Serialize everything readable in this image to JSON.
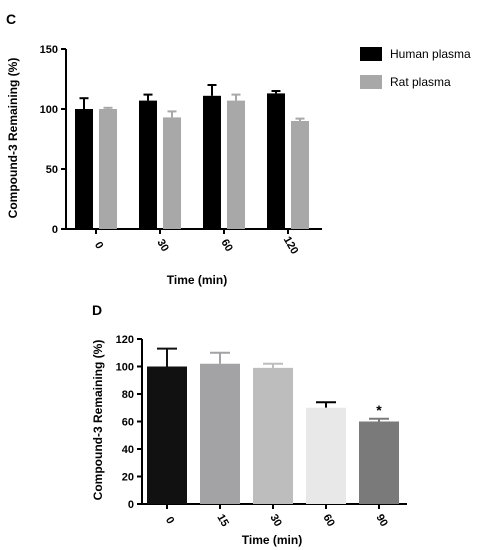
{
  "chart_data": [
    {
      "panel_label": "C",
      "type": "bar",
      "xlabel": "Time (min)",
      "ylabel": "Compound-3 Remaining (%)",
      "ylim": [
        0,
        150
      ],
      "yticks": [
        "0",
        "50",
        "100",
        "150"
      ],
      "categories": [
        "0",
        "30",
        "60",
        "120"
      ],
      "series": [
        {
          "name": "Human plasma",
          "color": "#000000",
          "values": [
            100,
            107,
            111,
            113
          ],
          "errors": [
            9,
            5,
            9,
            2
          ]
        },
        {
          "name": "Rat plasma",
          "color": "#a8a8a8",
          "values": [
            100,
            93,
            107,
            90
          ],
          "errors": [
            1,
            5,
            5,
            2
          ]
        }
      ],
      "legend_position": "top-right",
      "grid": false
    },
    {
      "panel_label": "D",
      "type": "bar",
      "xlabel": "Time (min)",
      "ylabel": "Compound-3 Remaining (%)",
      "ylim": [
        0,
        120
      ],
      "yticks": [
        "0",
        "20",
        "40",
        "60",
        "80",
        "100",
        "120"
      ],
      "categories": [
        "0",
        "15",
        "30",
        "60",
        "90"
      ],
      "values": [
        100,
        102,
        99,
        70,
        60
      ],
      "errors": [
        13,
        8,
        3,
        4,
        2
      ],
      "colors": [
        "#111111",
        "#a3a3a6",
        "#bdbdbd",
        "#e8e8e8",
        "#7a7a7a"
      ],
      "annotations": [
        {
          "category": "90",
          "text": "*"
        }
      ],
      "grid": false
    }
  ]
}
